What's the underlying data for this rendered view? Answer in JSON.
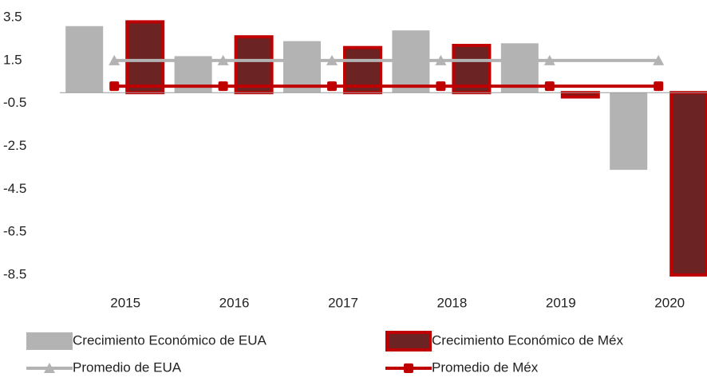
{
  "chart_data": {
    "type": "bar",
    "categories": [
      "2015",
      "2016",
      "2017",
      "2018",
      "2019",
      "2020"
    ],
    "series": [
      {
        "name": "Crecimiento Económico de EUA",
        "type": "bar",
        "color": "#b3b3b3",
        "values": [
          3.1,
          1.7,
          2.4,
          2.9,
          2.3,
          -3.6
        ]
      },
      {
        "name": "Crecimiento Económico de Méx",
        "type": "bar",
        "color": "#6b2323",
        "edge": "#c00000",
        "values": [
          3.3,
          2.6,
          2.1,
          2.2,
          -0.2,
          -8.5
        ]
      },
      {
        "name": "Promedio de EUA",
        "type": "line",
        "color": "#b3b3b3",
        "marker": "triangle",
        "values": [
          1.5,
          1.5,
          1.5,
          1.5,
          1.5,
          1.5
        ]
      },
      {
        "name": "Promedio de Méx",
        "type": "line",
        "color": "#c00000",
        "marker": "square",
        "values": [
          0.3,
          0.3,
          0.3,
          0.3,
          0.3,
          0.3
        ]
      }
    ],
    "ylim": [
      -8.5,
      3.5
    ],
    "yticks": [
      -8.5,
      -6.5,
      -4.5,
      -2.5,
      -0.5,
      1.5,
      3.5
    ],
    "grid": false
  }
}
